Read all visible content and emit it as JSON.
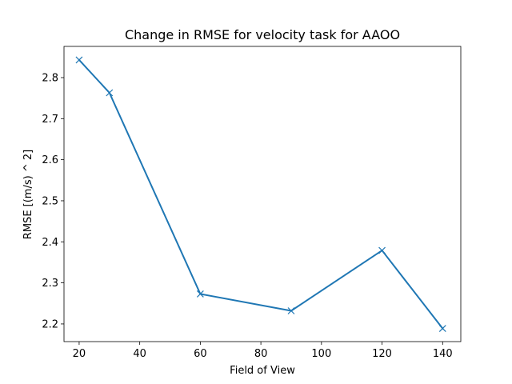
{
  "chart_data": {
    "type": "line",
    "title": "Change in RMSE for velocity task for AAOO",
    "xlabel": "Field of View",
    "ylabel": "RMSE [(m/s) ^ 2]",
    "xlim": [
      15,
      146
    ],
    "ylim": [
      2.157,
      2.876
    ],
    "xticks": [
      20,
      40,
      60,
      80,
      100,
      120,
      140
    ],
    "yticks": [
      2.2,
      2.3,
      2.4,
      2.5,
      2.6,
      2.7,
      2.8
    ],
    "xtick_labels": [
      "20",
      "40",
      "60",
      "80",
      "100",
      "120",
      "140"
    ],
    "ytick_labels": [
      "2.2",
      "2.3",
      "2.4",
      "2.5",
      "2.6",
      "2.7",
      "2.8"
    ],
    "grid": false,
    "series": [
      {
        "marker": "x",
        "color": "#1f77b4",
        "x": [
          20,
          30,
          60,
          90,
          120,
          140
        ],
        "y": [
          2.843,
          2.763,
          2.273,
          2.232,
          2.379,
          2.189
        ]
      }
    ]
  }
}
